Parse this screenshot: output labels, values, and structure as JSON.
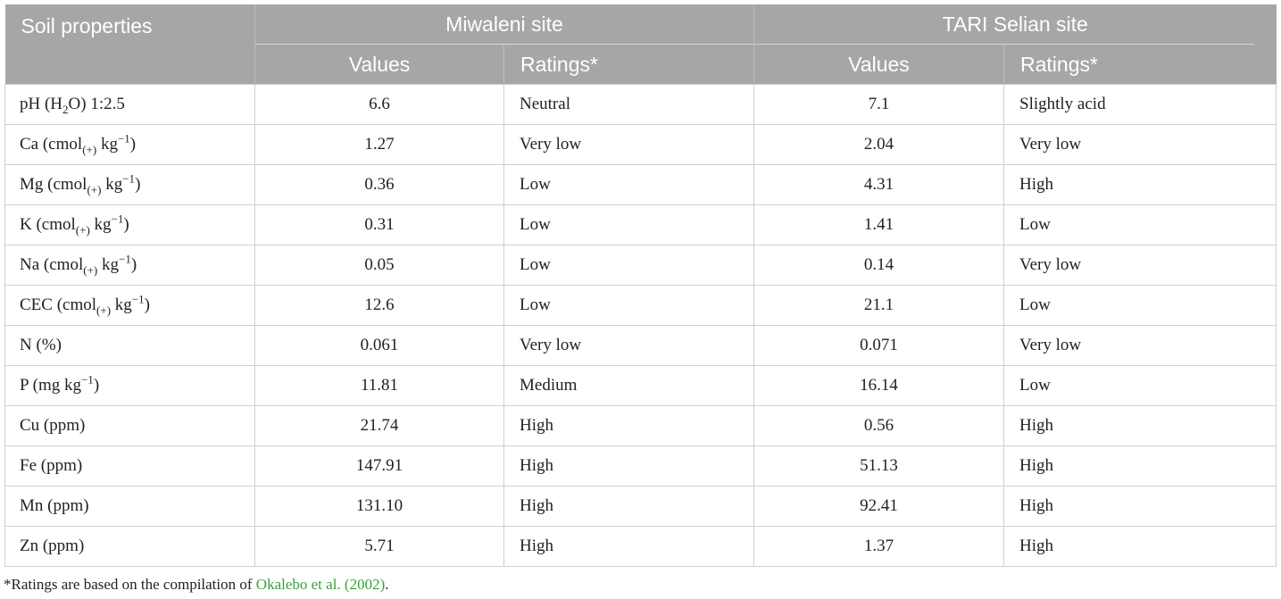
{
  "table": {
    "header": {
      "prop_col": "Soil properties",
      "site1": "Miwaleni site",
      "site2": "TARI Selian site",
      "values": "Values",
      "ratings": "Ratings*"
    },
    "rows": [
      {
        "prop": {
          "main": "pH (H",
          "sub": "2",
          "rest": "O) 1:2.5"
        },
        "v1": "6.6",
        "r1": "Neutral",
        "v2": "7.1",
        "r2": "Slightly acid"
      },
      {
        "prop": {
          "main": "Ca (cmol",
          "sub": "(+)",
          "mid": " kg",
          "sup": "−1",
          "rest": ")"
        },
        "v1": "1.27",
        "r1": "Very low",
        "v2": "2.04",
        "r2": "Very low"
      },
      {
        "prop": {
          "main": "Mg (cmol",
          "sub": "(+)",
          "mid": " kg",
          "sup": "−1",
          "rest": ")"
        },
        "v1": "0.36",
        "r1": "Low",
        "v2": "4.31",
        "r2": "High"
      },
      {
        "prop": {
          "main": "K (cmol",
          "sub": "(+)",
          "mid": " kg",
          "sup": "−1",
          "rest": ")"
        },
        "v1": "0.31",
        "r1": "Low",
        "v2": "1.41",
        "r2": "Low"
      },
      {
        "prop": {
          "main": "Na (cmol",
          "sub": "(+)",
          "mid": " kg",
          "sup": "−1",
          "rest": ")"
        },
        "v1": "0.05",
        "r1": "Low",
        "v2": "0.14",
        "r2": "Very low"
      },
      {
        "prop": {
          "main": "CEC (cmol",
          "sub": "(+)",
          "mid": " kg",
          "sup": "−1",
          "rest": ")"
        },
        "v1": "12.6",
        "r1": "Low",
        "v2": "21.1",
        "r2": "Low"
      },
      {
        "prop": {
          "main": "N (%)"
        },
        "v1": "0.061",
        "r1": "Very low",
        "v2": "0.071",
        "r2": "Very low"
      },
      {
        "prop": {
          "main": "P (mg kg",
          "sup": "−1",
          "rest": ")"
        },
        "v1": "11.81",
        "r1": "Medium",
        "v2": "16.14",
        "r2": "Low"
      },
      {
        "prop": {
          "main": "Cu (ppm)"
        },
        "v1": "21.74",
        "r1": "High",
        "v2": "0.56",
        "r2": "High"
      },
      {
        "prop": {
          "main": "Fe (ppm)"
        },
        "v1": "147.91",
        "r1": "High",
        "v2": "51.13",
        "r2": "High"
      },
      {
        "prop": {
          "main": "Mn (ppm)"
        },
        "v1": "131.10",
        "r1": "High",
        "v2": "92.41",
        "r2": "High"
      },
      {
        "prop": {
          "main": "Zn (ppm)"
        },
        "v1": "5.71",
        "r1": "High",
        "v2": "1.37",
        "r2": "High"
      }
    ]
  },
  "footnote": {
    "prefix": "*Ratings are based on the compilation of ",
    "citation": "Okalebo et al. (2002)",
    "suffix": "."
  }
}
